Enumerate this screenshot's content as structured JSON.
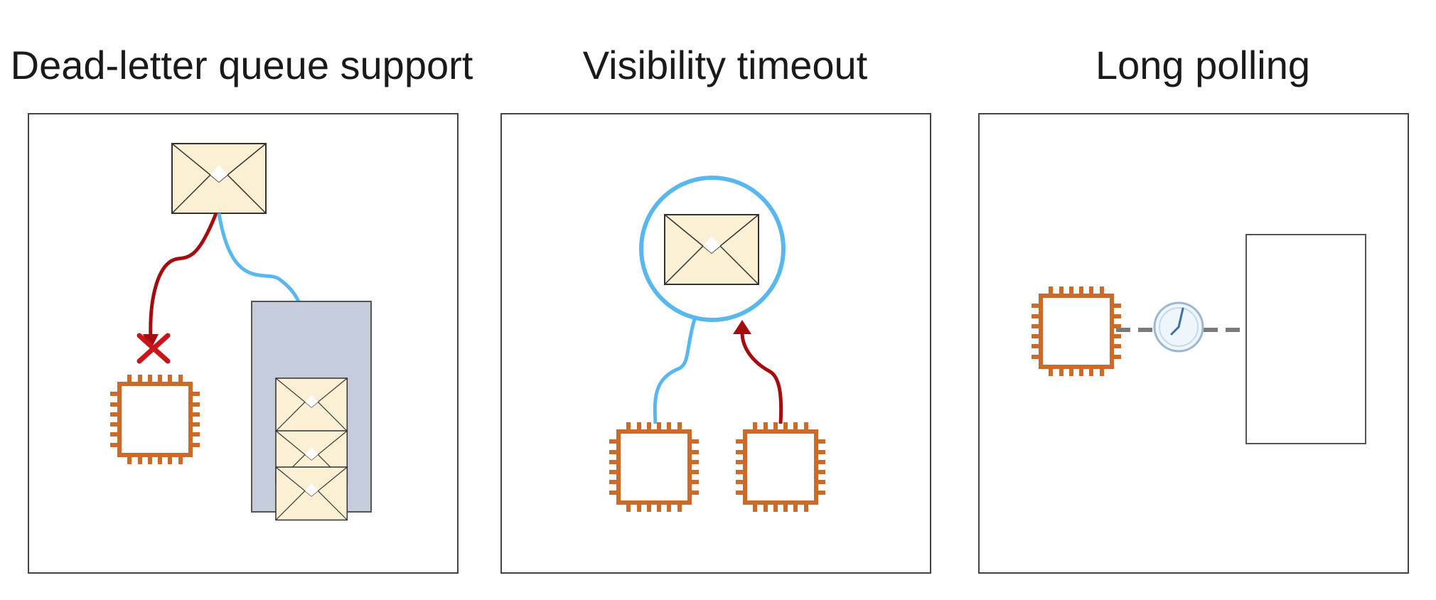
{
  "panels": [
    {
      "title": "Dead-letter queue support"
    },
    {
      "title": "Visibility timeout"
    },
    {
      "title": "Long polling"
    }
  ],
  "colors": {
    "frame": "#444444",
    "envelope_fill": "#fbefd4",
    "envelope_stroke": "#333333",
    "blue_line": "#58b8ee",
    "red_line": "#a30d10",
    "instance": "#cc6a2a",
    "queue_fill": "#c5cddd",
    "clock_fill": "#eef5fb"
  },
  "icons": [
    "envelope-icon",
    "compute-instance-icon",
    "rejected-x-icon",
    "clock-icon",
    "queue-icon"
  ]
}
